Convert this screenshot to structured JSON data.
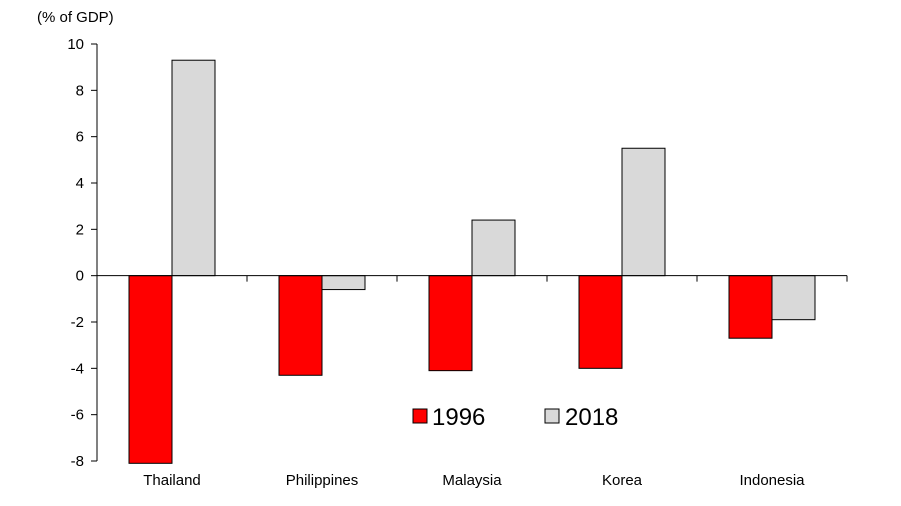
{
  "chart_data": {
    "type": "bar",
    "unit_label": "(% of GDP)",
    "categories": [
      "Thailand",
      "Philippines",
      "Malaysia",
      "Korea",
      "Indonesia"
    ],
    "series": [
      {
        "name": "1996",
        "color": "#ff0000",
        "values": [
          -8.1,
          -4.3,
          -4.1,
          -4.0,
          -2.7
        ]
      },
      {
        "name": "2018",
        "color": "#d9d9d9",
        "values": [
          9.3,
          -0.6,
          2.4,
          5.5,
          -1.9
        ]
      }
    ],
    "ylim": [
      -8,
      10
    ],
    "yticks": [
      "10",
      "8",
      "6",
      "4",
      "2",
      "0",
      "-2",
      "-4",
      "-6",
      "-8"
    ],
    "legend_position": "inside-bottom-center",
    "grid": false
  }
}
